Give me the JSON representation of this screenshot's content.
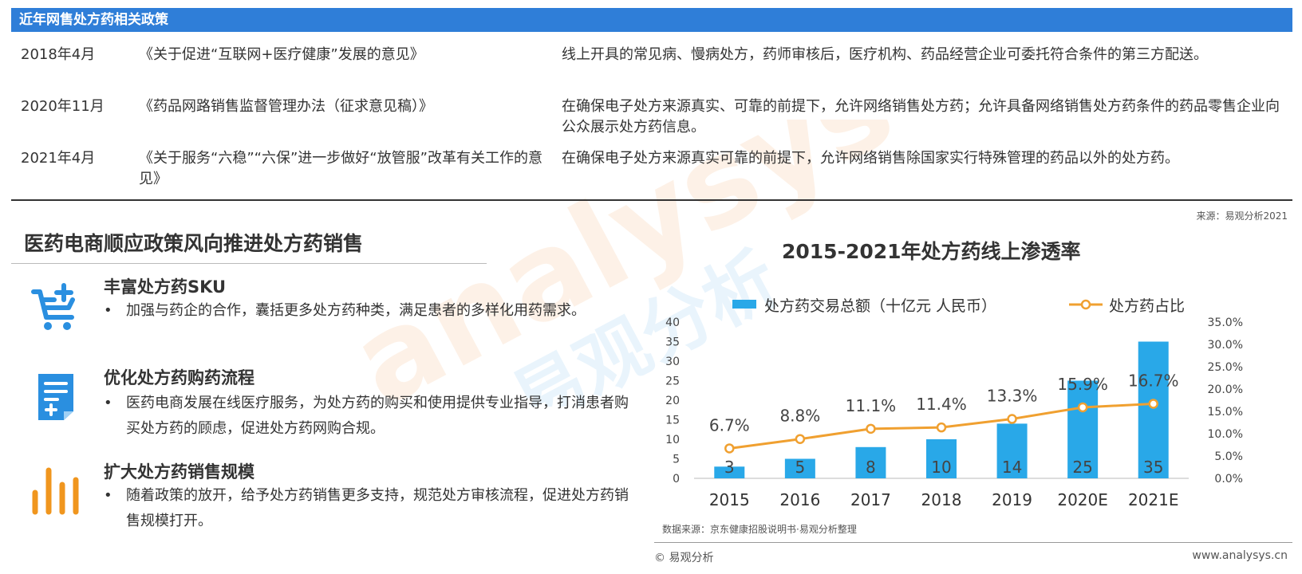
{
  "policy": {
    "header": "近年网售处方药相关政策",
    "rows": [
      {
        "date": "2018年4月",
        "doc": "《关于促进“互联网+医疗健康”发展的意见》",
        "desc": "线上开具的常见病、慢病处方，药师审核后，医疗机构、药品经营企业可委托符合条件的第三方配送。"
      },
      {
        "date": "2020年11月",
        "doc": "《药品网路销售监督管理办法（征求意见稿）》",
        "desc": "在确保电子处方来源真实、可靠的前提下，允许网络销售处方药；允许具备网络销售处方药条件的药品零售企业向公众展示处方药信息。"
      },
      {
        "date": "2021年4月",
        "doc": "《关于服务“六稳”“六保”进一步做好“放管服”改革有关工作的意见》",
        "desc": "在确保电子处方来源真实可靠的前提下，允许网络销售除国家实行特殊管理的药品以外的处方药。"
      }
    ],
    "source": "来源：易观分析2021"
  },
  "section": {
    "title": "医药电商顺应政策风向推进处方药销售",
    "features": [
      {
        "icon": "cart-plus-icon",
        "title": "丰富处方药SKU",
        "text": "加强与药企的合作，囊括更多处方药种类，满足患者的多样化用药需求。"
      },
      {
        "icon": "prescription-document-icon",
        "title": "优化处方药购药流程",
        "text": "医药电商发展在线医疗服务，为处方药的购买和使用提供专业指导，打消患者购买处方药的顾虑，促进处方药网购合规。"
      },
      {
        "icon": "bar-chart-icon",
        "title": "扩大处方药销售规模",
        "text": "随着政策的放开，给予处方药销售更多支持，规范处方审核流程，促进处方药销售规模打开。"
      }
    ],
    "bullet": "•"
  },
  "watermark": {
    "text": "analysys",
    "cn": "易观分析"
  },
  "chart_data": {
    "type": "bar",
    "title": "2015-2021年处方药线上渗透率",
    "categories": [
      "2015",
      "2016",
      "2017",
      "2018",
      "2019",
      "2020E",
      "2021E"
    ],
    "series": [
      {
        "name": "处方药交易总额（十亿元 人民币）",
        "type": "bar",
        "axis": "left",
        "values": [
          3,
          5,
          8,
          10,
          14,
          25,
          35
        ],
        "labels": [
          "3",
          "5",
          "8",
          "10",
          "14",
          "25",
          "35"
        ]
      },
      {
        "name": "处方药占比",
        "type": "line",
        "axis": "right",
        "values": [
          6.7,
          8.8,
          11.1,
          11.4,
          13.3,
          15.9,
          16.7
        ],
        "labels": [
          "6.7%",
          "8.8%",
          "11.1%",
          "11.4%",
          "13.3%",
          "15.9%",
          "16.7%"
        ]
      }
    ],
    "ylim": [
      0,
      40
    ],
    "yticks": [
      "0",
      "5",
      "10",
      "15",
      "20",
      "25",
      "30",
      "35",
      "40"
    ],
    "y2lim": [
      0,
      35
    ],
    "y2ticks": [
      "0.0%",
      "5.0%",
      "10.0%",
      "15.0%",
      "20.0%",
      "25.0%",
      "30.0%",
      "35.0%"
    ],
    "legend": "top",
    "colors": {
      "bar": "#29A8E8",
      "line": "#F0A030"
    }
  },
  "footer": {
    "data_source": "数据来源：京东健康招股说明书·易观分析整理",
    "copyright": "© 易观分析",
    "url": "www.analysys.cn"
  }
}
